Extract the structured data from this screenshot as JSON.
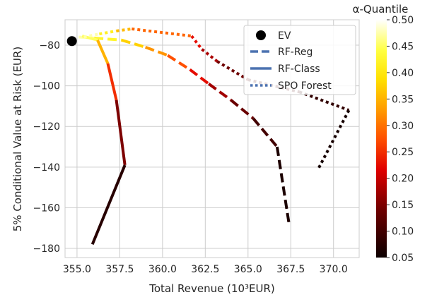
{
  "chart_data": {
    "type": "line",
    "xlabel": "Total Revenue (10³EUR)",
    "ylabel": "5% Conditional Value at Risk (EUR)",
    "xlim": [
      354.3,
      371.5
    ],
    "ylim": [
      -184.5,
      -67.5
    ],
    "xticks": [
      355.0,
      357.5,
      360.0,
      362.5,
      365.0,
      367.5,
      370.0
    ],
    "yticks": [
      -80,
      -100,
      -120,
      -140,
      -160,
      -180
    ],
    "grid": true,
    "legend": {
      "position": "top-right",
      "entries": [
        "EV",
        "RF-Reg",
        "RF-Class",
        "SPO Forest"
      ]
    },
    "colorbar": {
      "title": "α-Quantile",
      "colormap": "hot",
      "min": 0.05,
      "max": 0.5,
      "ticks": [
        "0.50",
        "0.45",
        "0.40",
        "0.35",
        "0.30",
        "0.25",
        "0.20",
        "0.15",
        "0.10",
        "0.05"
      ]
    },
    "ev_point": {
      "x": 354.7,
      "y": -78
    },
    "series": [
      {
        "name": "RF-Reg",
        "style": "dashed",
        "points": [
          {
            "x": 355.1,
            "y": -76.0,
            "q": 0.5
          },
          {
            "x": 356.0,
            "y": -76.5,
            "q": 0.45
          },
          {
            "x": 357.6,
            "y": -77.5,
            "q": 0.4
          },
          {
            "x": 359.0,
            "y": -81.0,
            "q": 0.35
          },
          {
            "x": 360.3,
            "y": -85.0,
            "q": 0.3
          },
          {
            "x": 361.6,
            "y": -92.0,
            "q": 0.25
          },
          {
            "x": 362.7,
            "y": -99.0,
            "q": 0.2
          },
          {
            "x": 364.0,
            "y": -107.0,
            "q": 0.15
          },
          {
            "x": 365.3,
            "y": -116.0,
            "q": 0.12
          },
          {
            "x": 366.7,
            "y": -130.0,
            "q": 0.08
          },
          {
            "x": 367.4,
            "y": -168.0,
            "q": 0.05
          }
        ]
      },
      {
        "name": "RF-Class",
        "style": "solid",
        "points": [
          {
            "x": 355.3,
            "y": -75.5,
            "q": 0.5
          },
          {
            "x": 356.2,
            "y": -77.5,
            "q": 0.4
          },
          {
            "x": 356.8,
            "y": -89.0,
            "q": 0.3
          },
          {
            "x": 357.3,
            "y": -107.0,
            "q": 0.2
          },
          {
            "x": 357.8,
            "y": -139.0,
            "q": 0.1
          },
          {
            "x": 355.9,
            "y": -178.0,
            "q": 0.05
          }
        ]
      },
      {
        "name": "SPO Forest",
        "style": "dotted",
        "points": [
          {
            "x": 355.4,
            "y": -76.0,
            "q": 0.5
          },
          {
            "x": 356.3,
            "y": -74.5,
            "q": 0.45
          },
          {
            "x": 357.3,
            "y": -73.0,
            "q": 0.38
          },
          {
            "x": 358.2,
            "y": -72.0,
            "q": 0.33
          },
          {
            "x": 361.7,
            "y": -75.5,
            "q": 0.25
          },
          {
            "x": 362.3,
            "y": -82.0,
            "q": 0.2
          },
          {
            "x": 363.2,
            "y": -88.0,
            "q": 0.16
          },
          {
            "x": 365.0,
            "y": -97.0,
            "q": 0.12
          },
          {
            "x": 368.0,
            "y": -103.0,
            "q": 0.1
          },
          {
            "x": 370.9,
            "y": -112.0,
            "q": 0.07
          },
          {
            "x": 369.1,
            "y": -141.0,
            "q": 0.05
          }
        ]
      }
    ]
  }
}
